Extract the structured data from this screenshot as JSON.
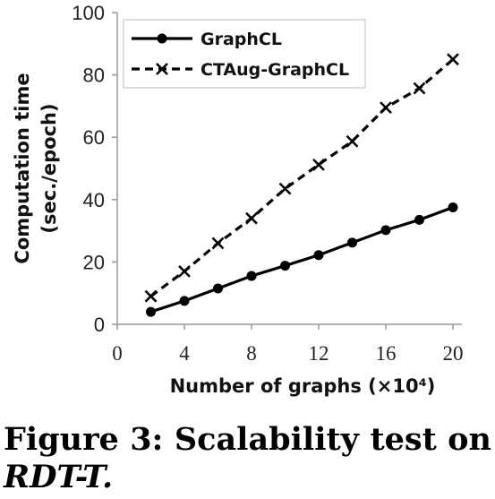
{
  "chart_data": {
    "type": "line",
    "xlabel": "Number of graphs (×10⁴)",
    "ylabel_lines": [
      "Computation time",
      "(sec./epoch)"
    ],
    "x": [
      2,
      4,
      6,
      8,
      10,
      12,
      14,
      16,
      18,
      20
    ],
    "xlim": [
      0,
      20
    ],
    "ylim": [
      0,
      100
    ],
    "x_ticks": [
      "0",
      "4",
      "8",
      "12",
      "16",
      "20"
    ],
    "y_ticks": [
      "0",
      "20",
      "40",
      "60",
      "80",
      "100"
    ],
    "grid": false,
    "legend_position": "top-left",
    "series": [
      {
        "name": "GraphCL",
        "marker": "circle",
        "line_style": "solid",
        "color": "#000000",
        "values": [
          4,
          7.5,
          11.5,
          15.5,
          18.8,
          22.2,
          26.2,
          30.2,
          33.5,
          37.5
        ]
      },
      {
        "name": "CTAug-GraphCL",
        "marker": "x",
        "line_style": "dashed",
        "color": "#000000",
        "values": [
          9,
          17,
          26,
          34,
          43.5,
          51.2,
          58.7,
          69.5,
          75.7,
          85
        ]
      }
    ]
  },
  "caption": {
    "words_line1": [
      "Figure",
      "3:",
      "Scalability",
      "test",
      "on"
    ],
    "line2": "RDT-T."
  }
}
